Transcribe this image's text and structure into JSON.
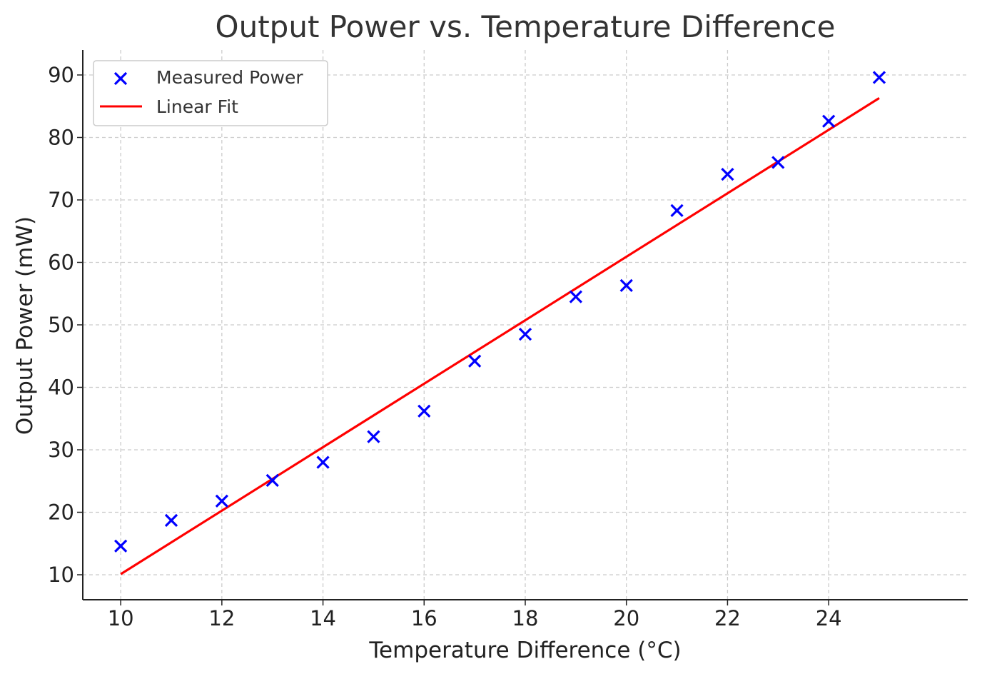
{
  "chart_data": {
    "type": "scatter",
    "title": "Output Power vs. Temperature Difference",
    "xlabel": "Temperature Difference (°C)",
    "ylabel": "Output Power (mW)",
    "xlim": [
      9.25,
      26.75
    ],
    "ylim": [
      6.0,
      94.0
    ],
    "xticks": [
      10,
      12,
      14,
      16,
      18,
      20,
      22,
      24
    ],
    "yticks": [
      10,
      20,
      30,
      40,
      50,
      60,
      70,
      80,
      90
    ],
    "grid": true,
    "legend_position": "top-left",
    "series": [
      {
        "name": "Measured Power",
        "type": "scatter",
        "marker": "x",
        "color": "#0000ff",
        "x": [
          10,
          11,
          12,
          13,
          14,
          15,
          16,
          17,
          18,
          19,
          20,
          21,
          22,
          23,
          24,
          25
        ],
        "y": [
          14.6,
          18.7,
          21.8,
          25.1,
          28.0,
          32.1,
          36.2,
          44.2,
          48.5,
          54.5,
          56.3,
          68.3,
          74.1,
          76.0,
          82.6,
          89.6
        ]
      },
      {
        "name": "Linear Fit",
        "type": "line",
        "color": "#ff0000",
        "x": [
          10,
          25
        ],
        "y": [
          10.1,
          86.3
        ]
      }
    ]
  },
  "colors": {
    "text": "#333333",
    "grid": "#cccccc",
    "axis": "#222222"
  }
}
